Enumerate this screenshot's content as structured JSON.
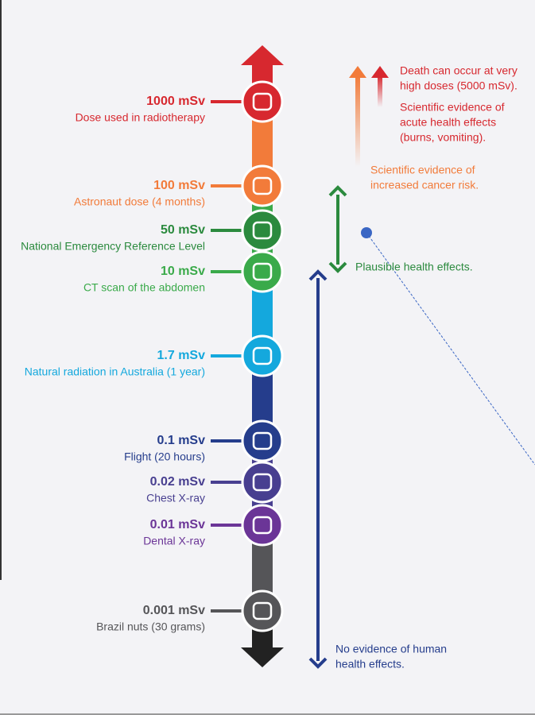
{
  "scale": {
    "items": [
      {
        "dose": "1000 mSv",
        "description": "Dose used in radiotherapy",
        "color": "#d7282f"
      },
      {
        "dose": "100 mSv",
        "description": "Astronaut dose (4 months)",
        "color": "#f27b3a"
      },
      {
        "dose": "50 mSv",
        "description": "National Emergency Reference Level",
        "color": "#2b8a3e"
      },
      {
        "dose": "10 mSv",
        "description": "CT scan of the abdomen",
        "color": "#3aaa4a"
      },
      {
        "dose": "1.7 mSv",
        "description": "Natural radiation in Australia (1 year)",
        "color": "#14a8dd"
      },
      {
        "dose": "0.1 mSv",
        "description": "Flight (20 hours)",
        "color": "#253d8c"
      },
      {
        "dose": "0.02 mSv",
        "description": "Chest X-ray",
        "color": "#483f90"
      },
      {
        "dose": "0.01 mSv",
        "description": "Dental X-ray",
        "color": "#6b3597"
      },
      {
        "dose": "0.001 mSv",
        "description": "Brazil nuts (30 grams)",
        "color": "#555558"
      }
    ]
  },
  "effects": [
    {
      "lines": [
        "Death can occur at very",
        "high doses (5000 mSv)."
      ],
      "color": "#d7282f"
    },
    {
      "lines": [
        "Scientific evidence of",
        "acute health effects",
        "(burns, vomiting)."
      ],
      "color": "#d7282f"
    },
    {
      "lines": [
        "Scientific evidence of",
        "increased cancer risk."
      ],
      "color": "#f27b3a"
    },
    {
      "lines": [
        "Plausible health effects."
      ],
      "color": "#2b8a3e"
    },
    {
      "lines": [
        "No evidence of human",
        "health effects."
      ],
      "color": "#253d8c"
    }
  ]
}
